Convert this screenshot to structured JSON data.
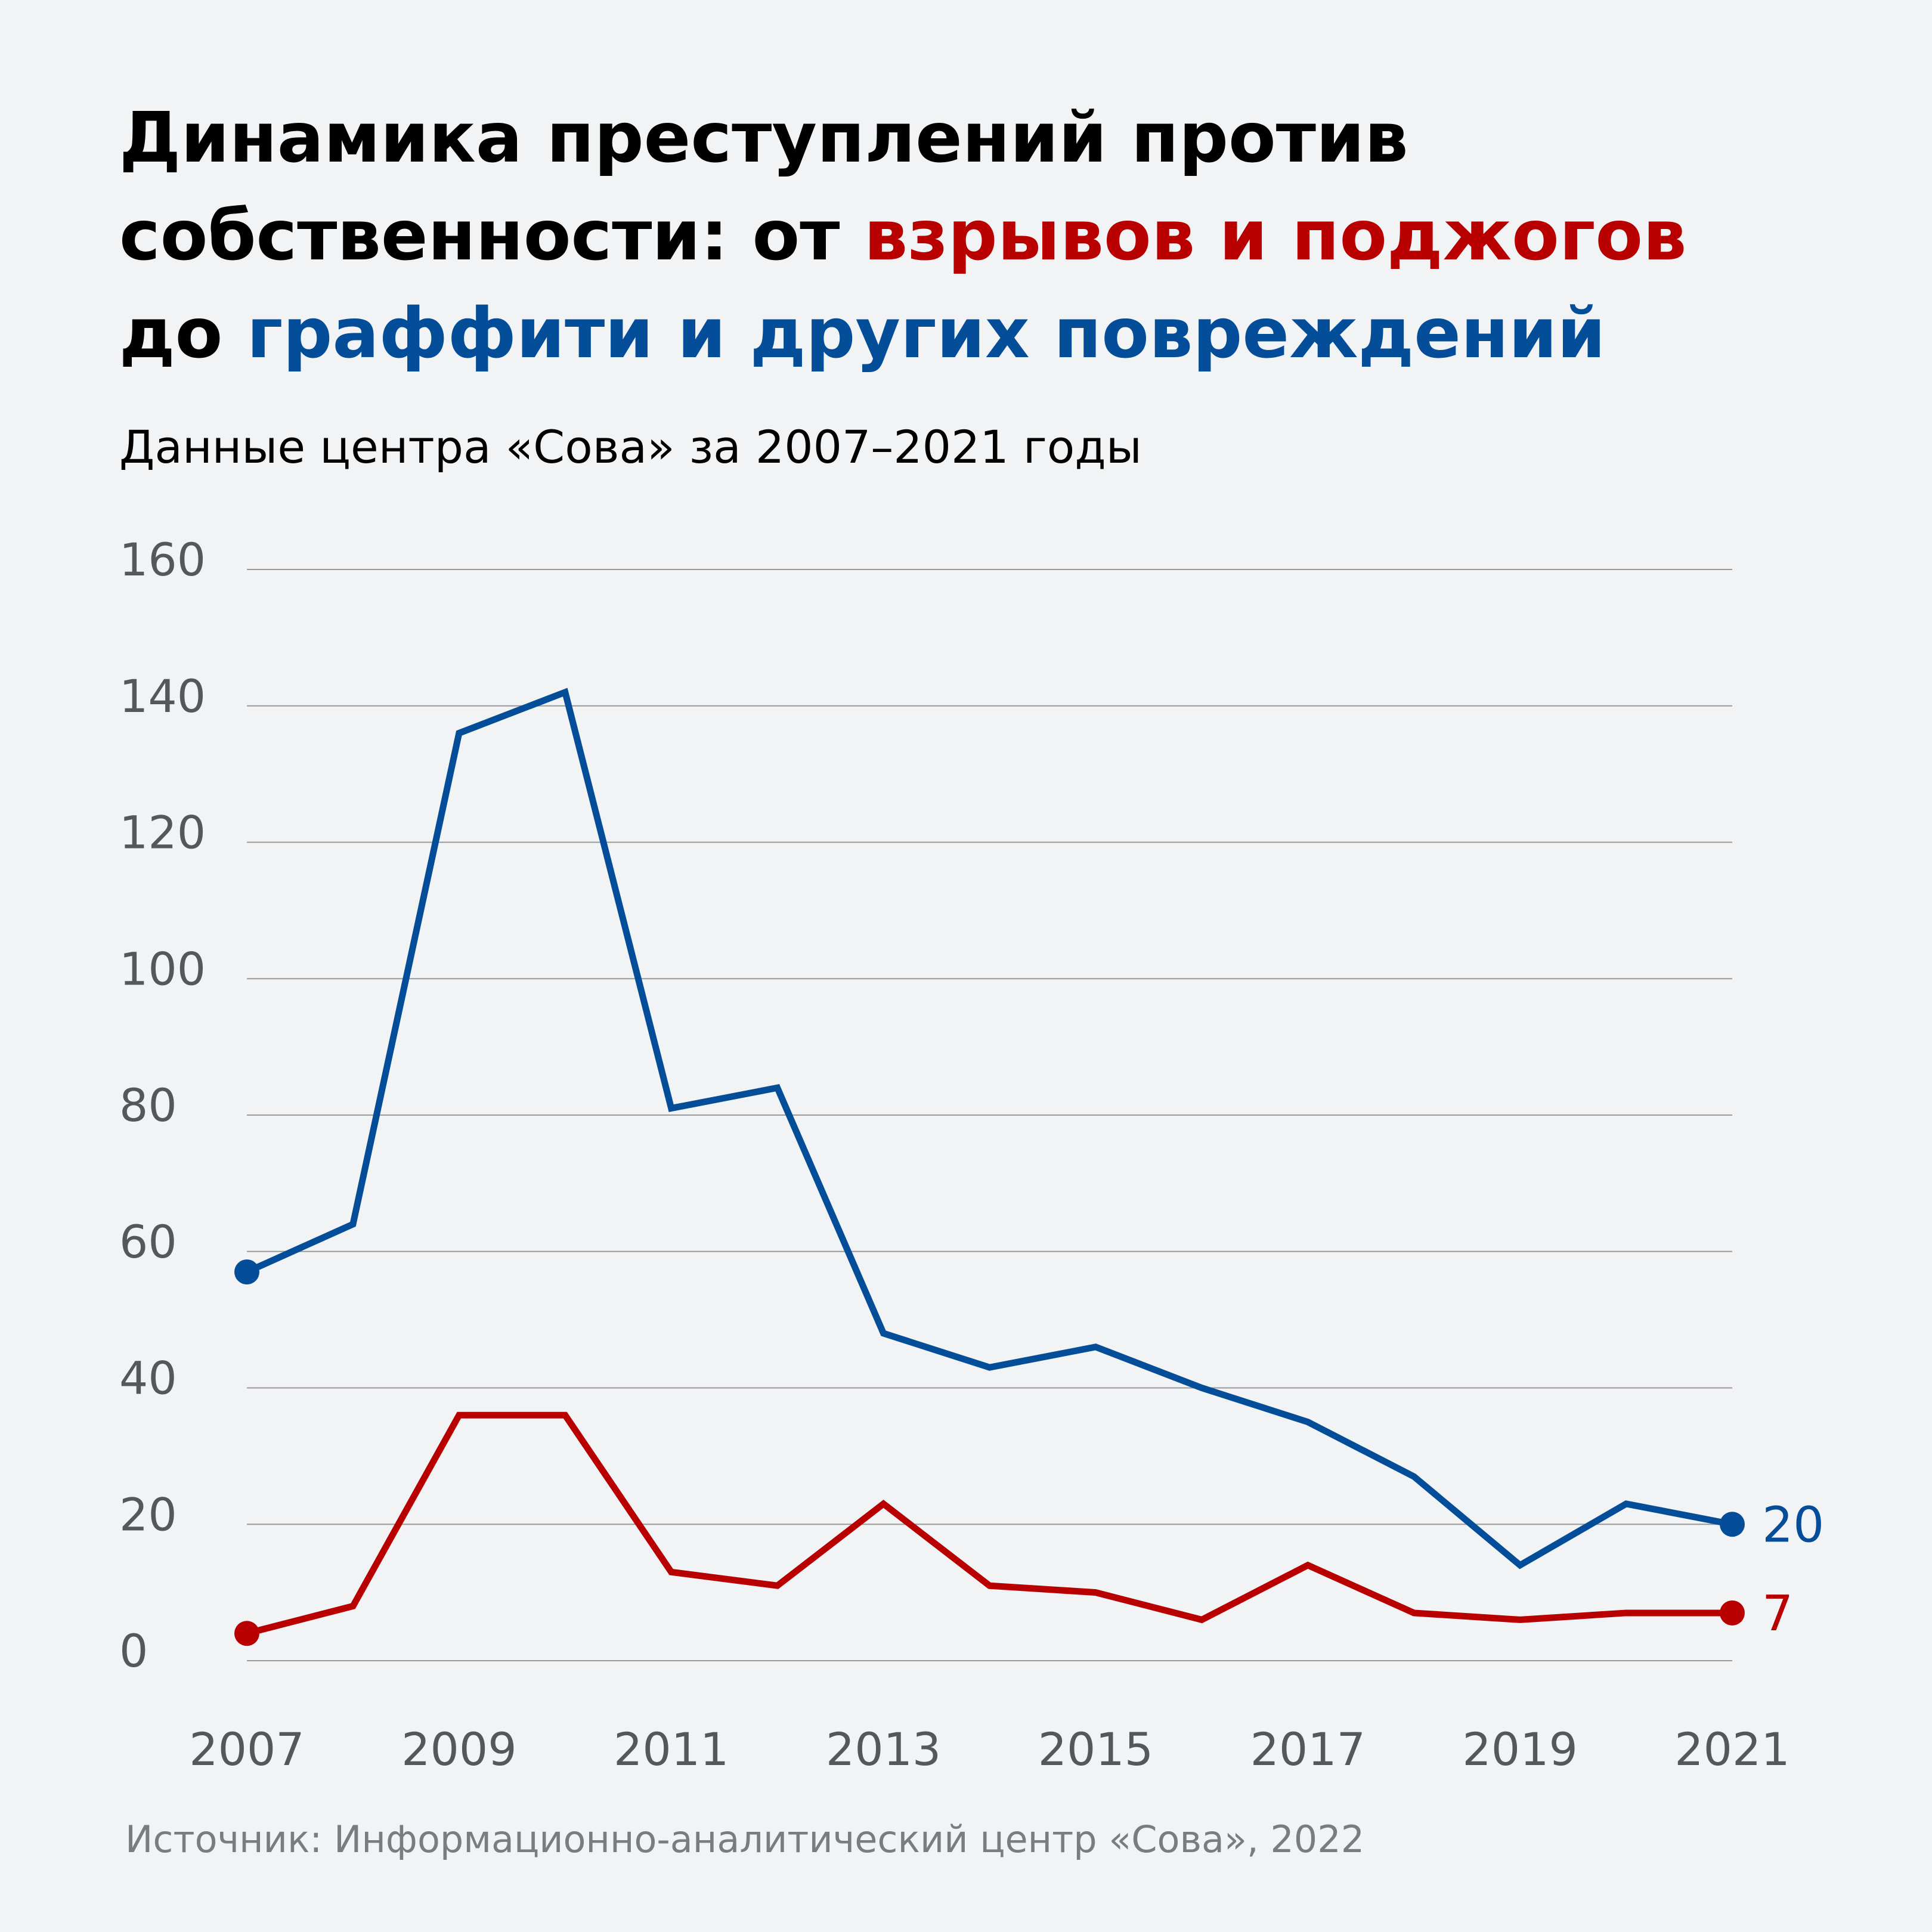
{
  "title": {
    "line1": "Динамика преступлений против",
    "line2_pre": "собственности: от ",
    "line2_red": "взрывов и поджогов",
    "line3_pre": "до ",
    "line3_blue": "граффити и других повреждений"
  },
  "subtitle": "Данные центра «Сова» за 2007–2021 годы",
  "source": "Источник: Информационно-аналитический центр «Сова», 2022",
  "colors": {
    "red": "#b90000",
    "blue": "#034d99",
    "grid": "#9a9a9a",
    "tick": "#55585b",
    "background": "#f1f3f5"
  },
  "chart_data": {
    "type": "line",
    "x": [
      2007,
      2008,
      2009,
      2010,
      2011,
      2012,
      2013,
      2014,
      2015,
      2016,
      2017,
      2018,
      2019,
      2020,
      2021
    ],
    "xticks": [
      2007,
      2009,
      2011,
      2013,
      2015,
      2017,
      2019,
      2021
    ],
    "yticks": [
      0,
      20,
      40,
      60,
      80,
      100,
      120,
      140,
      160
    ],
    "ylim": [
      0,
      160
    ],
    "grid": true,
    "series": [
      {
        "key": "graffiti",
        "color": "#034d99",
        "values": [
          57,
          64,
          136,
          142,
          81,
          84,
          48,
          43,
          46,
          40,
          35,
          27,
          14,
          23,
          20
        ],
        "end_label": "20"
      },
      {
        "key": "arson",
        "color": "#b90000",
        "values": [
          4,
          8,
          36,
          36,
          13,
          11,
          23,
          11,
          10,
          6,
          14,
          7,
          6,
          7,
          7
        ],
        "end_label": "7"
      }
    ]
  }
}
